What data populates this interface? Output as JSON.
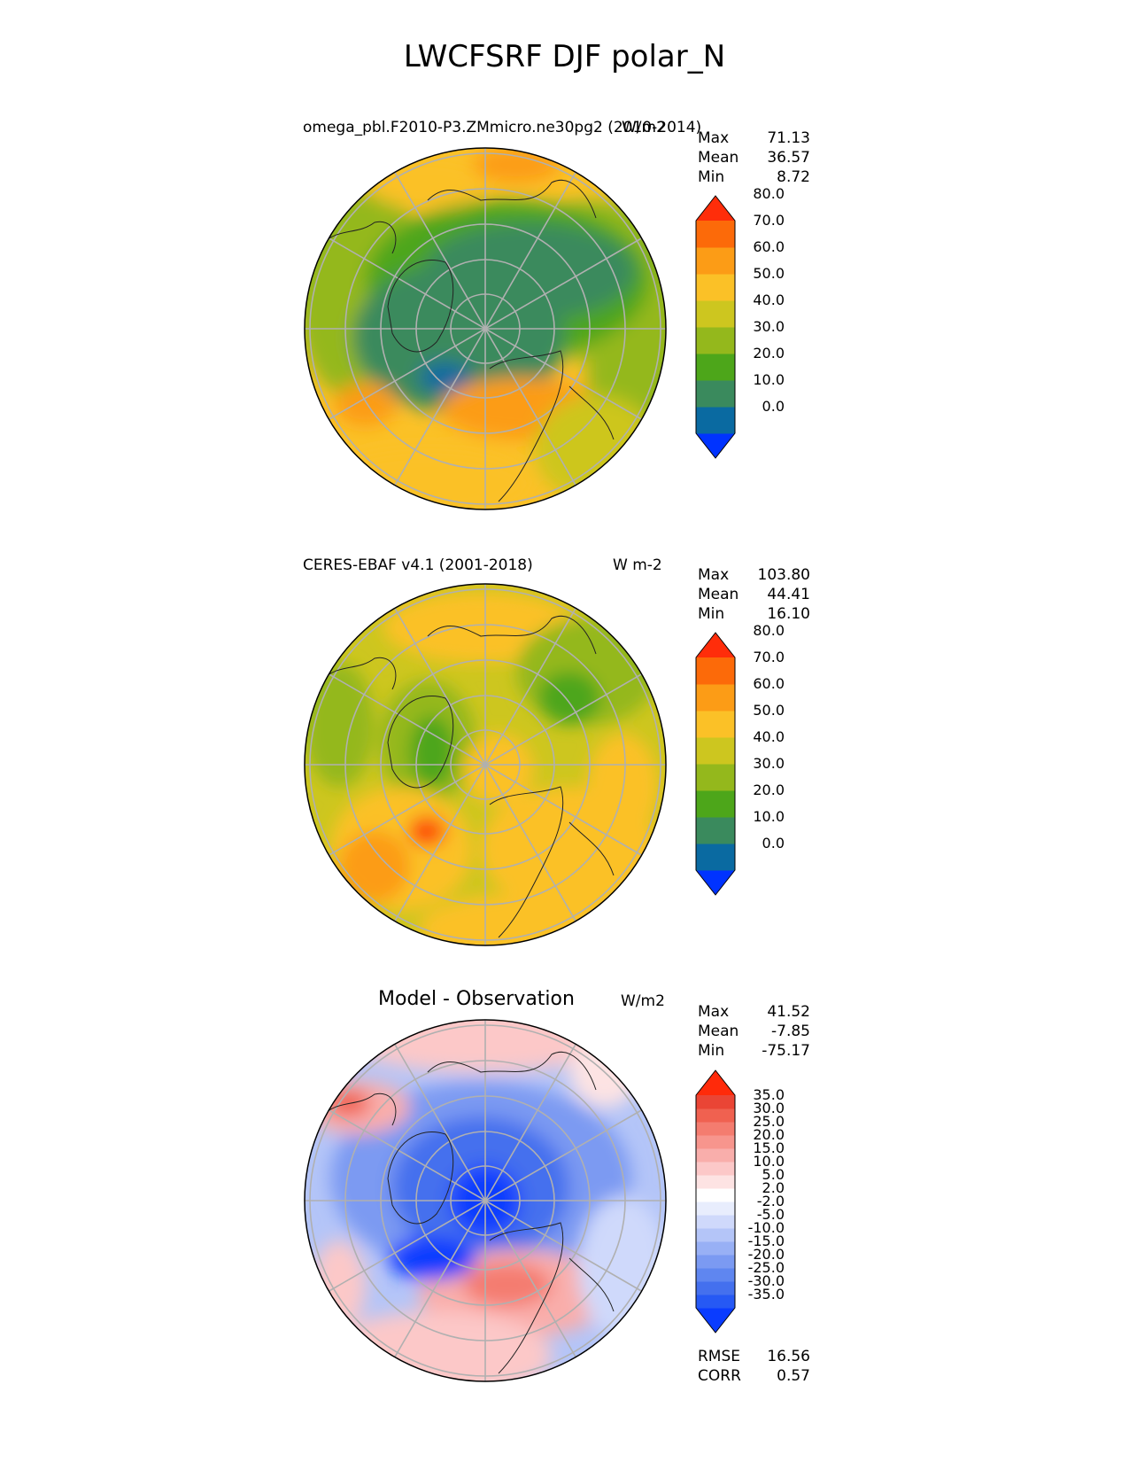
{
  "title": "LWCFSRF DJF polar_N",
  "panels": [
    {
      "id": "model",
      "left_title": "omega_pbl.F2010-P3.ZMmicro.ne30pg2 (2010-2014)",
      "right_title": "W/m2",
      "stats": [
        {
          "label": "Max",
          "value": "71.13"
        },
        {
          "label": "Mean",
          "value": "36.57"
        },
        {
          "label": "Min",
          "value": "8.72"
        }
      ]
    },
    {
      "id": "obs",
      "left_title": "CERES-EBAF v4.1 (2001-2018)",
      "right_title": "W m-2",
      "stats": [
        {
          "label": "Max",
          "value": "103.80"
        },
        {
          "label": "Mean",
          "value": "44.41"
        },
        {
          "label": "Min",
          "value": "16.10"
        }
      ]
    },
    {
      "id": "diff",
      "center_title": "Model - Observation",
      "right_title": "W/m2",
      "stats": [
        {
          "label": "Max",
          "value": "41.52"
        },
        {
          "label": "Mean",
          "value": "-7.85"
        },
        {
          "label": "Min",
          "value": "-75.17"
        }
      ],
      "extra_stats": [
        {
          "label": "RMSE",
          "value": "16.56"
        },
        {
          "label": "CORR",
          "value": "0.57"
        }
      ]
    }
  ],
  "colorbars": {
    "field": {
      "colors": [
        "#0033ff",
        "#0a6aa1",
        "#3a8a5d",
        "#4da61a",
        "#94b81c",
        "#cdc61f",
        "#fbc127",
        "#fc9c16",
        "#fc6a09",
        "#ff2d0a"
      ],
      "tick_labels": [
        "0.0",
        "10.0",
        "20.0",
        "30.0",
        "40.0",
        "50.0",
        "60.0",
        "70.0",
        "80.0"
      ]
    },
    "diff": {
      "colors": [
        "#0a3cff",
        "#2659f4",
        "#4470ee",
        "#5f86f0",
        "#7b9af2",
        "#98b0f5",
        "#b4c5f8",
        "#cfd9fb",
        "#e8edfd",
        "#ffffff",
        "#fde3e3",
        "#fcc8c8",
        "#f9aeab",
        "#f7958d",
        "#f47c6f",
        "#f06150",
        "#ea4535",
        "#ff2a0a"
      ],
      "tick_labels": [
        "-35.0",
        "-30.0",
        "-25.0",
        "-20.0",
        "-15.0",
        "-10.0",
        "-5.0",
        "-2.0",
        "2.0",
        "5.0",
        "10.0",
        "15.0",
        "20.0",
        "25.0",
        "30.0",
        "35.0"
      ]
    }
  },
  "chart_data": [
    {
      "type": "heatmap",
      "projection": "north polar stereographic",
      "title": "omega_pbl.F2010-P3.ZMmicro.ne30pg2 (2010-2014)",
      "units": "W/m2",
      "levels": [
        0,
        10,
        20,
        30,
        40,
        50,
        60,
        70,
        80
      ],
      "stats": {
        "max": 71.13,
        "mean": 36.57,
        "min": 8.72
      }
    },
    {
      "type": "heatmap",
      "projection": "north polar stereographic",
      "title": "CERES-EBAF v4.1 (2001-2018)",
      "units": "W m-2",
      "levels": [
        0,
        10,
        20,
        30,
        40,
        50,
        60,
        70,
        80
      ],
      "stats": {
        "max": 103.8,
        "mean": 44.41,
        "min": 16.1
      }
    },
    {
      "type": "heatmap",
      "projection": "north polar stereographic",
      "title": "Model - Observation",
      "units": "W/m2",
      "levels": [
        -35,
        -30,
        -25,
        -20,
        -15,
        -10,
        -5,
        -2,
        2,
        5,
        10,
        15,
        20,
        25,
        30,
        35
      ],
      "stats": {
        "max": 41.52,
        "mean": -7.85,
        "min": -75.17,
        "rmse": 16.56,
        "corr": 0.57
      }
    }
  ]
}
